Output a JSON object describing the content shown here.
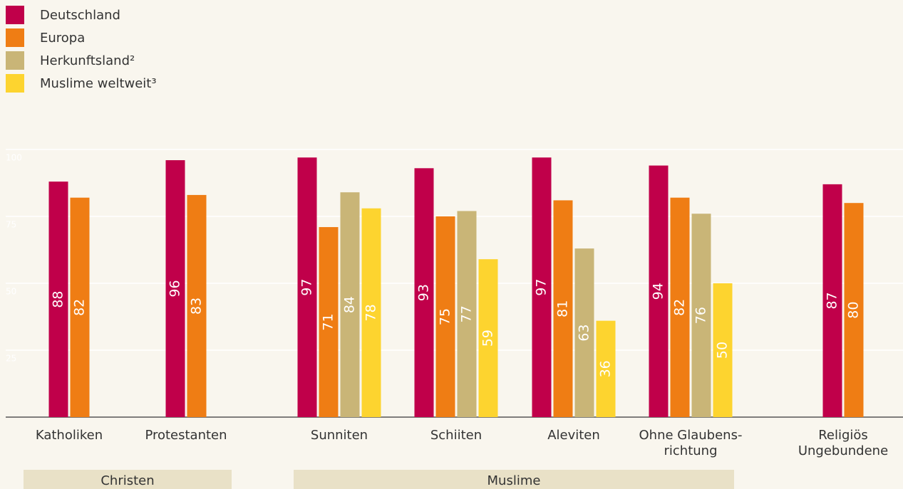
{
  "chart_data": {
    "type": "bar",
    "categories": [
      [
        "Katholiken"
      ],
      [
        "Protestanten"
      ],
      [
        "Sunniten"
      ],
      [
        "Schiiten"
      ],
      [
        "Aleviten"
      ],
      [
        "Ohne Glaubens-",
        "richtung"
      ],
      [
        "Religiös",
        "Ungebundene"
      ]
    ],
    "series": [
      {
        "name": "Deutschland",
        "color": "#c0004a",
        "values": [
          88,
          96,
          97,
          93,
          97,
          94,
          87
        ]
      },
      {
        "name": "Europa",
        "color": "#ef7d14",
        "values": [
          82,
          83,
          71,
          75,
          81,
          82,
          80
        ]
      },
      {
        "name": "Herkunftsland²",
        "color": "#c9b577",
        "values": [
          null,
          null,
          84,
          77,
          63,
          76,
          null
        ]
      },
      {
        "name": "Muslime weltweit³",
        "color": "#fdd42f",
        "values": [
          null,
          null,
          78,
          59,
          36,
          50,
          null
        ]
      }
    ],
    "groups": [
      "Christen",
      "Muslime"
    ],
    "ylim": [
      0,
      100
    ],
    "yticks": [
      25,
      50,
      75,
      100
    ],
    "grid": true,
    "legend": "top-left"
  }
}
